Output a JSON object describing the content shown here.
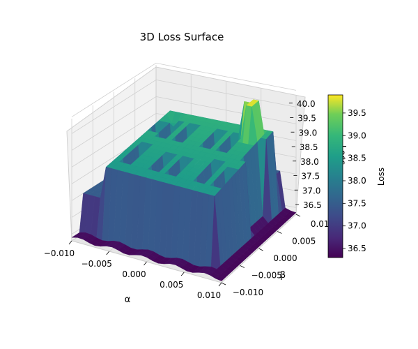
{
  "chart_data": {
    "type": "surface",
    "title": "3D Loss Surface",
    "xlabel": "α",
    "ylabel": "β",
    "zlabel": "Loss",
    "colorbar_label": "Loss",
    "colormap": "viridis",
    "x_range": [
      -0.01,
      0.01
    ],
    "y_range": [
      -0.01,
      0.01
    ],
    "z_range": [
      36.3,
      40.0
    ],
    "x_ticks": [
      "−0.010",
      "−0.005",
      "0.000",
      "0.005",
      "0.010"
    ],
    "y_ticks": [
      "−0.010",
      "−0.005",
      "0.000",
      "0.005",
      "0.010"
    ],
    "z_ticks": [
      "36.5",
      "37.0",
      "37.5",
      "38.0",
      "38.5",
      "39.0",
      "39.5",
      "40.0"
    ],
    "colorbar_ticks": [
      "36.5",
      "37.0",
      "37.5",
      "38.0",
      "38.5",
      "39.0",
      "39.5"
    ],
    "colorbar_range": [
      36.3,
      39.9
    ],
    "surface_description_levels": {
      "floor": 36.4,
      "edge_low": 37.5,
      "plateau_front": 38.4,
      "plateau_back": 38.9,
      "spike_peak": 39.8
    },
    "grid": true
  }
}
